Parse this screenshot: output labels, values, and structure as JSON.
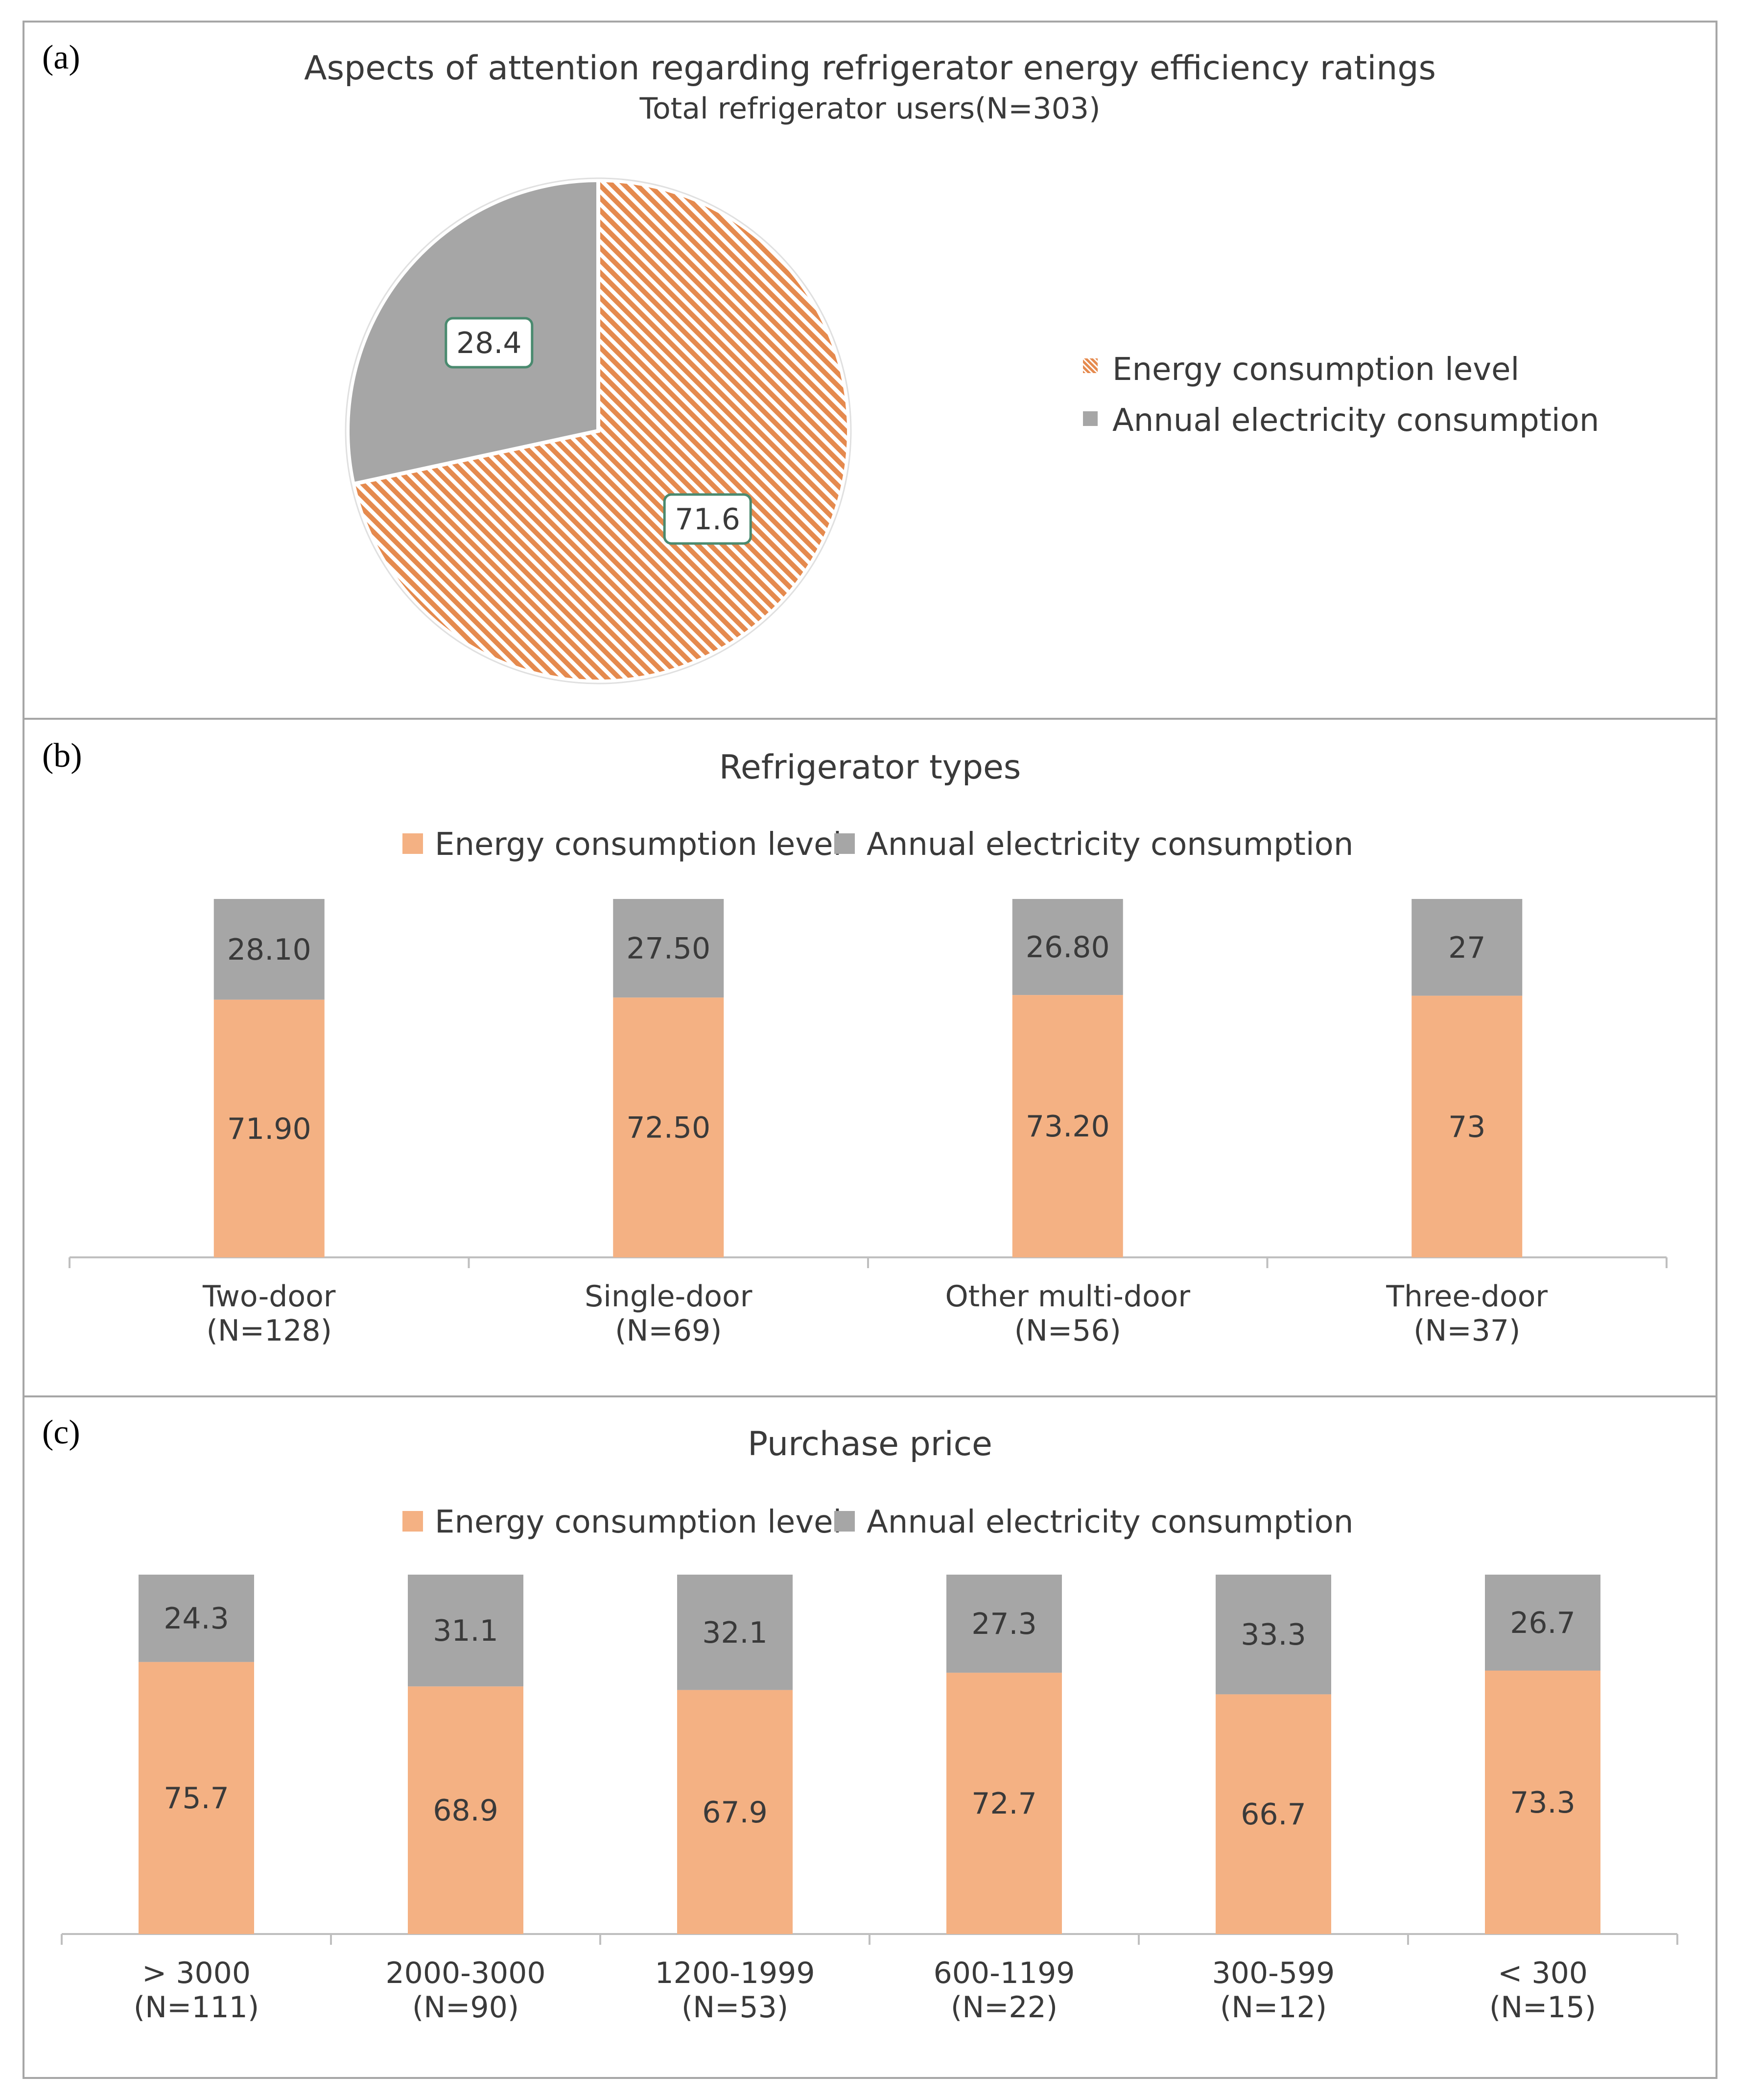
{
  "colors": {
    "energy": "#f4b183",
    "energy_hatch": "#e58a4e",
    "annual": "#a6a6a6",
    "frame": "#a6a6a6",
    "label_box_border": "#4a8a6f"
  },
  "chart_data": [
    {
      "panel": "(a)",
      "type": "pie",
      "title": "Aspects of attention regarding refrigerator energy efficiency ratings",
      "subtitle": "Total refrigerator users(N=303)",
      "legend": [
        "Energy consumption level",
        "Annual electricity consumption"
      ],
      "legend_position": "right",
      "slices": [
        {
          "name": "Energy consumption level",
          "value": 71.6,
          "label": "71.6",
          "pattern": "hatched-orange"
        },
        {
          "name": "Annual electricity consumption",
          "value": 28.4,
          "label": "28.4",
          "pattern": "solid-gray"
        }
      ]
    },
    {
      "panel": "(b)",
      "type": "bar",
      "stacked": true,
      "title": "Refrigerator types",
      "legend": [
        "Energy consumption level",
        "Annual electricity consumption"
      ],
      "legend_position": "top",
      "categories": [
        {
          "name": "Two-door",
          "n": "(N=128)"
        },
        {
          "name": "Single-door",
          "n": "(N=69)"
        },
        {
          "name": "Other multi-door",
          "n": "(N=56)"
        },
        {
          "name": "Three-door",
          "n": "(N=37)"
        }
      ],
      "series": [
        {
          "name": "Energy consumption level",
          "values": [
            71.9,
            72.5,
            73.2,
            73
          ],
          "labels": [
            "71.90",
            "72.50",
            "73.20",
            "73"
          ]
        },
        {
          "name": "Annual electricity consumption",
          "values": [
            28.1,
            27.5,
            26.8,
            27
          ],
          "labels": [
            "28.10",
            "27.50",
            "26.80",
            "27"
          ]
        }
      ],
      "ylim": [
        0,
        100
      ]
    },
    {
      "panel": "(c)",
      "type": "bar",
      "stacked": true,
      "title": "Purchase price",
      "legend": [
        "Energy consumption level",
        "Annual electricity consumption"
      ],
      "legend_position": "top",
      "categories": [
        {
          "name": "> 3000",
          "n": "(N=111)"
        },
        {
          "name": "2000-3000",
          "n": "(N=90)"
        },
        {
          "name": "1200-1999",
          "n": "(N=53)"
        },
        {
          "name": "600-1199",
          "n": "(N=22)"
        },
        {
          "name": "300-599",
          "n": "(N=12)"
        },
        {
          "name": "< 300",
          "n": "(N=15)"
        }
      ],
      "series": [
        {
          "name": "Energy consumption level",
          "values": [
            75.7,
            68.9,
            67.9,
            72.7,
            66.7,
            73.3
          ],
          "labels": [
            "75.7",
            "68.9",
            "67.9",
            "72.7",
            "66.7",
            "73.3"
          ]
        },
        {
          "name": "Annual electricity consumption",
          "values": [
            24.3,
            31.1,
            32.1,
            27.3,
            33.3,
            26.7
          ],
          "labels": [
            "24.3",
            "31.1",
            "32.1",
            "27.3",
            "33.3",
            "26.7"
          ]
        }
      ],
      "ylim": [
        0,
        100
      ]
    }
  ]
}
